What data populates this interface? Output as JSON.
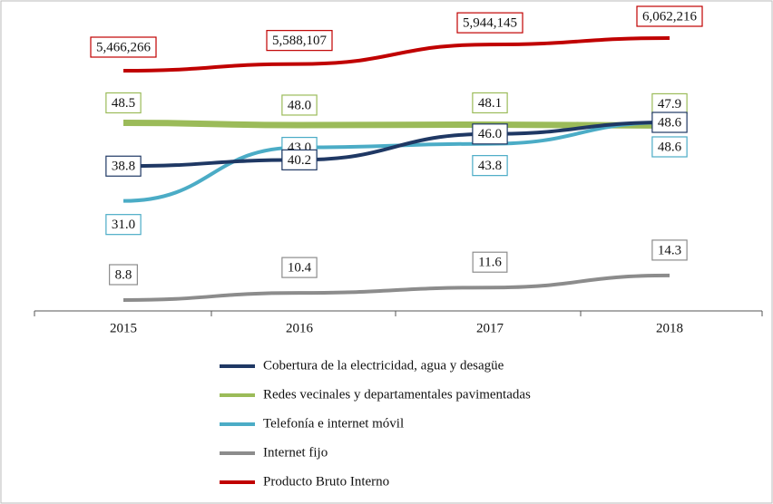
{
  "chart_data": {
    "type": "line",
    "categories": [
      "2015",
      "2016",
      "2017",
      "2018"
    ],
    "series": [
      {
        "name": "Cobertura de la electricidad, agua y desagüe",
        "color": "#1f3864",
        "values": [
          38.8,
          40.2,
          46.0,
          48.6
        ],
        "value_labels": [
          "38.8",
          "40.2",
          "46.0",
          "48.6"
        ]
      },
      {
        "name": "Redes vecinales y departamentales pavimentadas",
        "color": "#9bbb59",
        "values": [
          48.5,
          48.0,
          48.1,
          47.9
        ],
        "value_labels": [
          "48.5",
          "48.0",
          "48.1",
          "47.9"
        ]
      },
      {
        "name": "Telefonía e internet móvil",
        "color": "#4bacc6",
        "values": [
          31.0,
          43.0,
          43.8,
          48.6
        ],
        "value_labels": [
          "31.0",
          "43.0",
          "43.8",
          "48.6"
        ]
      },
      {
        "name": "Internet fijo",
        "color": "#8c8c8c",
        "values": [
          8.8,
          10.4,
          11.6,
          14.3
        ]
      },
      {
        "name": "Producto Bruto Interno",
        "color": "#c00000",
        "axis": "y2",
        "values": [
          5466266,
          5588107,
          5944145,
          6062216
        ],
        "value_labels": [
          "5,466,266",
          "5,588,107",
          "5,944,145",
          "6,062,216"
        ]
      }
    ]
  }
}
